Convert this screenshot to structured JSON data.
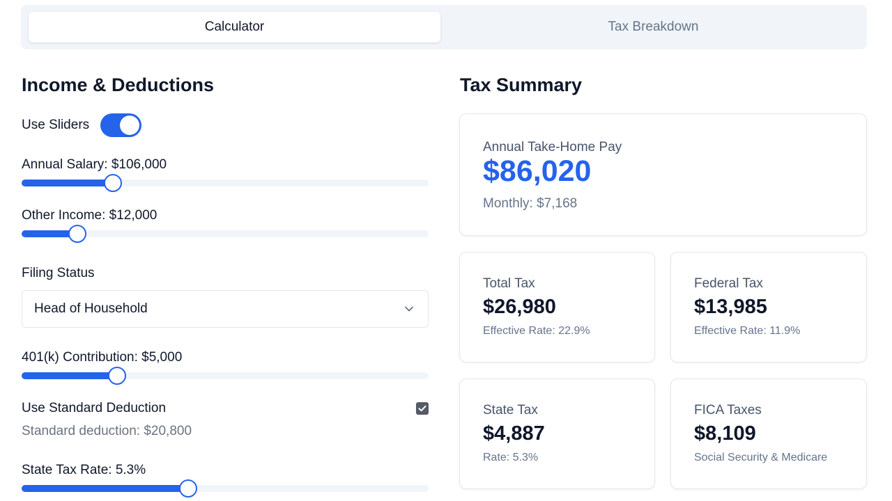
{
  "tabs": [
    {
      "label": "Calculator",
      "active": true
    },
    {
      "label": "Tax Breakdown",
      "active": false
    }
  ],
  "left": {
    "title": "Income & Deductions",
    "use_sliders": {
      "label": "Use Sliders",
      "on": true
    },
    "annual_salary": {
      "label": "Annual Salary: $106,000",
      "fraction": 0.225
    },
    "other_income": {
      "label": "Other Income: $12,000",
      "fraction": 0.137
    },
    "filing_status": {
      "label": "Filing Status",
      "value": "Head of Household"
    },
    "k401": {
      "label": "401(k) Contribution: $5,000",
      "fraction": 0.235
    },
    "standard_deduction": {
      "label": "Use Standard Deduction",
      "checked": true,
      "note": "Standard deduction: $20,800"
    },
    "state_tax_rate": {
      "label": "State Tax Rate: 5.3%",
      "fraction": 0.41
    }
  },
  "right": {
    "title": "Tax Summary",
    "take_home": {
      "label": "Annual Take-Home Pay",
      "value": "$86,020",
      "sub": "Monthly: $7,168"
    },
    "total_tax": {
      "label": "Total Tax",
      "value": "$26,980",
      "sub": "Effective Rate: 22.9%"
    },
    "federal_tax": {
      "label": "Federal Tax",
      "value": "$13,985",
      "sub": "Effective Rate: 11.9%"
    },
    "state_tax": {
      "label": "State Tax",
      "value": "$4,887",
      "sub": "Rate: 5.3%"
    },
    "fica": {
      "label": "FICA Taxes",
      "value": "$8,109",
      "sub": "Social Security & Medicare"
    }
  },
  "colors": {
    "accent": "#2563eb",
    "track": "#f1f5f9",
    "border": "#e2e8f0",
    "muted": "#64748b"
  }
}
